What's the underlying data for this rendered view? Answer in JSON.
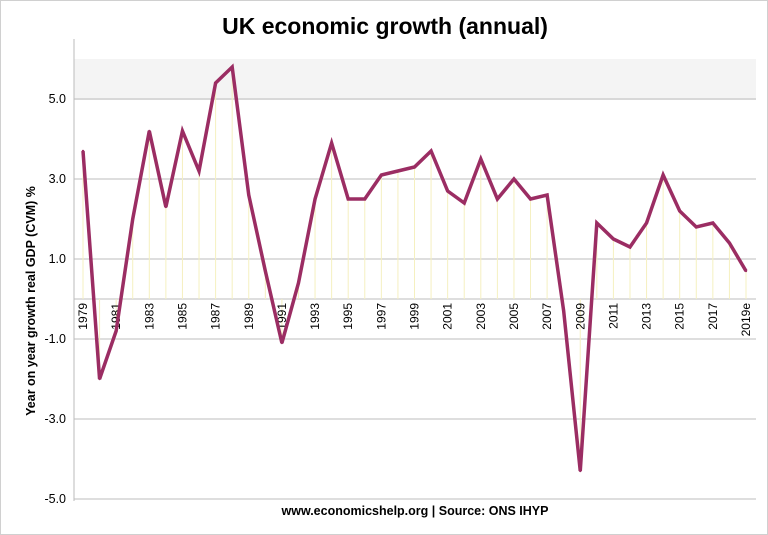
{
  "chart_data": {
    "type": "line",
    "title": "UK economic growth (annual)",
    "xlabel": "",
    "ylabel": "Year on year growth real GDP (CVM) %",
    "source": "www.economicshelp.org | Source: ONS IHYP",
    "ylim": [
      -5,
      6
    ],
    "yticks": [
      "5.0",
      "3.0",
      "1.0",
      "-1.0",
      "-3.0",
      "-5.0"
    ],
    "ytick_values": [
      5,
      3,
      1,
      -1,
      -3,
      -5
    ],
    "grid": true,
    "line_color": "#9b2d63",
    "drop_line_color": "#f5f0c0",
    "categories": [
      "1979",
      "1980",
      "1981",
      "1982",
      "1983",
      "1984",
      "1985",
      "1986",
      "1987",
      "1988",
      "1989",
      "1990",
      "1991",
      "1992",
      "1993",
      "1994",
      "1995",
      "1996",
      "1997",
      "1998",
      "1999",
      "2000",
      "2001",
      "2002",
      "2003",
      "2004",
      "2005",
      "2006",
      "2007",
      "2008",
      "2009",
      "2010",
      "2011",
      "2012",
      "2013",
      "2014",
      "2015",
      "2016",
      "2017",
      "2018",
      "2019e"
    ],
    "xtick_labels": [
      "1979",
      "1981",
      "1983",
      "1985",
      "1987",
      "1989",
      "1991",
      "1993",
      "1995",
      "1997",
      "1999",
      "2001",
      "2003",
      "2005",
      "2007",
      "2009",
      "2011",
      "2013",
      "2015",
      "2017",
      "2019e"
    ],
    "values": [
      3.7,
      -2.0,
      -0.8,
      2.0,
      4.2,
      2.3,
      4.2,
      3.2,
      5.4,
      5.8,
      2.6,
      0.7,
      -1.1,
      0.4,
      2.5,
      3.9,
      2.5,
      2.5,
      3.1,
      3.2,
      3.3,
      3.7,
      2.7,
      2.4,
      3.5,
      2.5,
      3.0,
      2.5,
      2.6,
      -0.3,
      -4.3,
      1.9,
      1.5,
      1.3,
      1.9,
      3.1,
      2.2,
      1.8,
      1.9,
      1.4,
      0.7
    ]
  }
}
